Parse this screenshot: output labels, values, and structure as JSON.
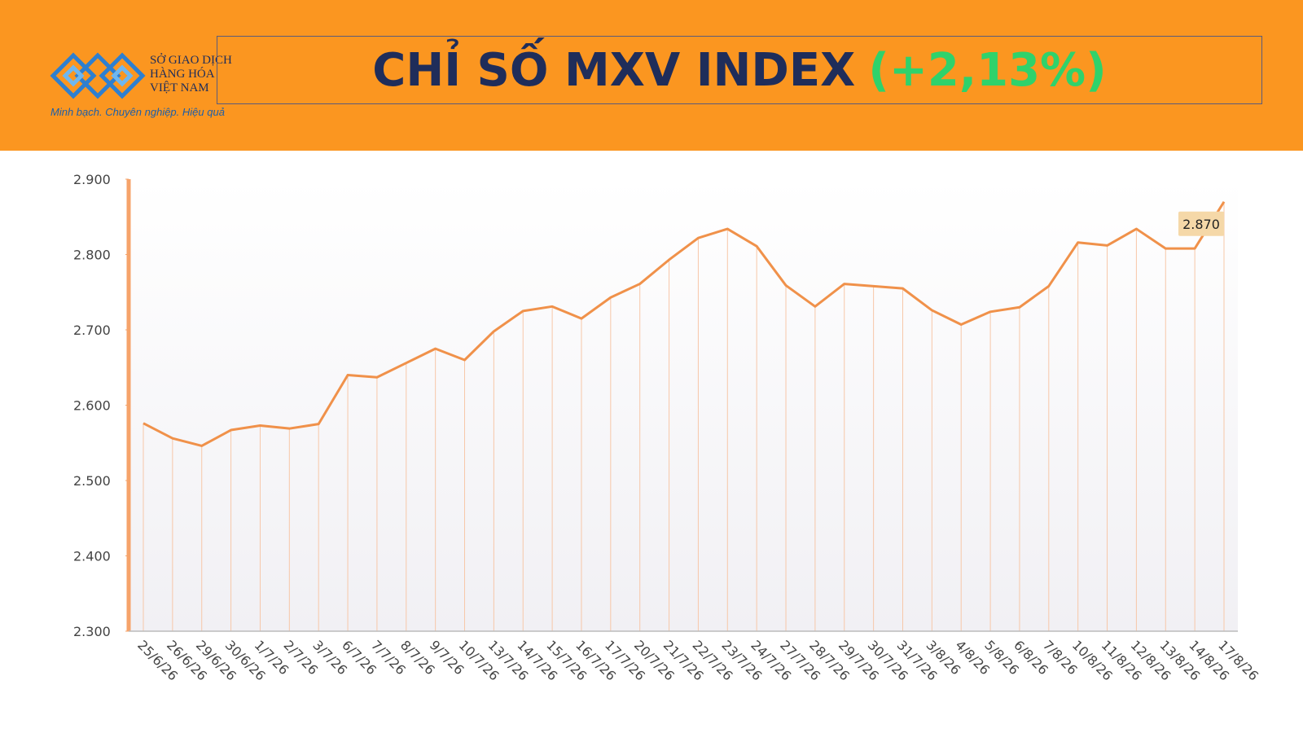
{
  "header": {
    "logo_lines": [
      "SỞ GIAO DỊCH",
      "HÀNG HÓA",
      "VIỆT NAM"
    ],
    "slogan": "Minh bạch. Chuyên nghiệp. Hiệu quả"
  },
  "chart_data": {
    "type": "line",
    "title": "CHỈ SỐ MXV INDEX",
    "subtitle": "(+2,13%)",
    "categories": [
      "25/6/26",
      "26/6/26",
      "29/6/26",
      "30/6/26",
      "1/7/26",
      "2/7/26",
      "3/7/26",
      "6/7/26",
      "7/7/26",
      "8/7/26",
      "9/7/26",
      "10/7/26",
      "13/7/26",
      "14/7/26",
      "15/7/26",
      "16/7/26",
      "17/7/26",
      "20/7/26",
      "21/7/26",
      "22/7/26",
      "23/7/26",
      "24/7/26",
      "27/7/26",
      "28/7/26",
      "29/7/26",
      "30/7/26",
      "31/7/26",
      "3/8/26",
      "4/8/26",
      "5/8/26",
      "6/8/26",
      "7/8/26",
      "10/8/26",
      "11/8/26",
      "12/8/26",
      "13/8/26",
      "14/8/26",
      "17/8/26"
    ],
    "values": [
      2576,
      2556,
      2546,
      2567,
      2573,
      2569,
      2575,
      2640,
      2637,
      2656,
      2675,
      2660,
      2698,
      2725,
      2731,
      2715,
      2743,
      2761,
      2793,
      2822,
      2834,
      2811,
      2759,
      2731,
      2761,
      2758,
      2755,
      2726,
      2707,
      2724,
      2730,
      2758,
      2816,
      2812,
      2834,
      2808,
      2808,
      2870
    ],
    "value_labels": [
      null,
      null,
      null,
      null,
      null,
      null,
      null,
      null,
      null,
      null,
      null,
      null,
      null,
      null,
      null,
      null,
      null,
      null,
      null,
      null,
      null,
      null,
      null,
      null,
      null,
      null,
      null,
      null,
      null,
      null,
      null,
      null,
      null,
      null,
      null,
      null,
      null,
      "2.870"
    ],
    "color": "#f0914a",
    "ylim": [
      2300,
      2900
    ],
    "yticks": [
      {
        "value": 2300,
        "label": "2.300"
      },
      {
        "value": 2400,
        "label": "2.400"
      },
      {
        "value": 2500,
        "label": "2.500"
      },
      {
        "value": 2600,
        "label": "2.600"
      },
      {
        "value": 2700,
        "label": "2.700"
      },
      {
        "value": 2800,
        "label": "2.800"
      },
      {
        "value": 2900,
        "label": "2.900"
      }
    ]
  }
}
